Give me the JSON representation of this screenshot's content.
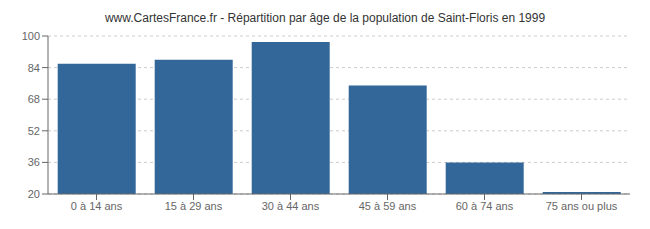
{
  "chart_data": {
    "type": "bar",
    "title": "www.CartesFrance.fr - Répartition par âge de la population de Saint-Floris en 1999",
    "categories": [
      "0 à 14 ans",
      "15 à 29 ans",
      "30 à 44 ans",
      "45 à 59 ans",
      "60 à 74 ans",
      "75 ans ou plus"
    ],
    "values": [
      86,
      88,
      97,
      75,
      36,
      21
    ],
    "color": "#336699",
    "ylim": [
      20,
      100
    ],
    "yticks": [
      20,
      36,
      52,
      68,
      84,
      100
    ],
    "grid": true
  }
}
